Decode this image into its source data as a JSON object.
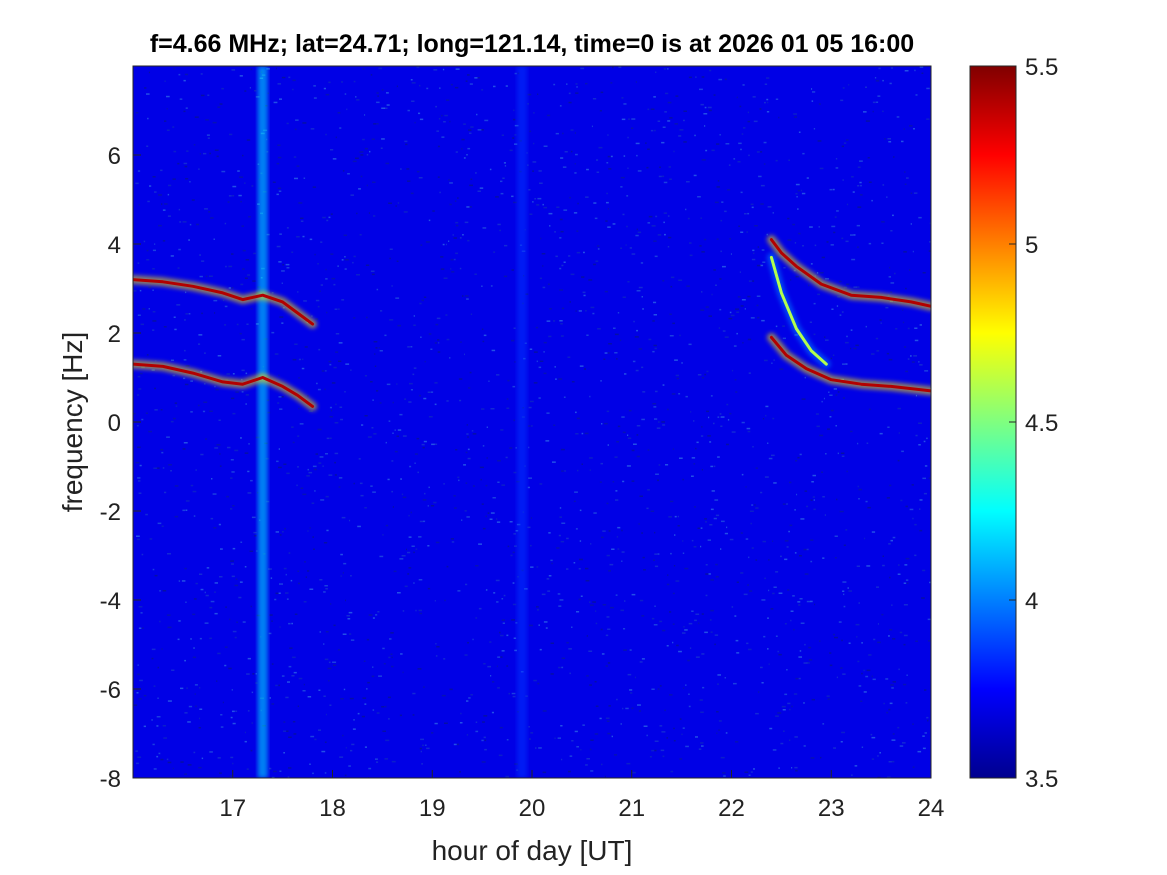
{
  "chart_data": {
    "type": "heatmap",
    "title": "f=4.66 MHz;  lat=24.71; long=121.14, time=0 is at 2026 01 05 16:00",
    "xlabel": "hour of day [UT]",
    "ylabel": "frequency [Hz]",
    "xlim": [
      16,
      24
    ],
    "ylim": [
      -8,
      8
    ],
    "x_ticks": [
      17,
      18,
      19,
      20,
      21,
      22,
      23,
      24
    ],
    "y_ticks": [
      -8,
      -6,
      -4,
      -2,
      0,
      2,
      4,
      6
    ],
    "colorbar": {
      "colormap": "jet",
      "clim": [
        3.5,
        5.5
      ],
      "ticks": [
        3.5,
        4,
        4.5,
        5,
        5.5
      ],
      "labels": [
        "3.5",
        "4",
        "4.5",
        "5",
        "5.5"
      ]
    },
    "background_level": 3.7,
    "features": [
      {
        "kind": "vertical-band",
        "x": 17.3,
        "level": 4.2
      },
      {
        "kind": "vertical-band",
        "x": 19.9,
        "level": 3.85
      },
      {
        "kind": "trace",
        "level": 5.4,
        "points": [
          [
            16.0,
            3.2
          ],
          [
            16.3,
            3.15
          ],
          [
            16.6,
            3.05
          ],
          [
            16.9,
            2.9
          ],
          [
            17.1,
            2.75
          ],
          [
            17.3,
            2.85
          ],
          [
            17.5,
            2.7
          ],
          [
            17.65,
            2.45
          ],
          [
            17.8,
            2.2
          ]
        ]
      },
      {
        "kind": "trace",
        "level": 5.4,
        "points": [
          [
            16.0,
            1.3
          ],
          [
            16.3,
            1.25
          ],
          [
            16.6,
            1.1
          ],
          [
            16.9,
            0.9
          ],
          [
            17.1,
            0.85
          ],
          [
            17.3,
            1.0
          ],
          [
            17.5,
            0.8
          ],
          [
            17.65,
            0.6
          ],
          [
            17.8,
            0.35
          ]
        ]
      },
      {
        "kind": "trace",
        "level": 5.4,
        "points": [
          [
            22.4,
            4.1
          ],
          [
            22.5,
            3.8
          ],
          [
            22.65,
            3.5
          ],
          [
            22.9,
            3.1
          ],
          [
            23.2,
            2.85
          ],
          [
            23.5,
            2.8
          ],
          [
            23.8,
            2.7
          ],
          [
            24.0,
            2.6
          ]
        ]
      },
      {
        "kind": "trace",
        "level": 5.4,
        "points": [
          [
            22.4,
            1.9
          ],
          [
            22.55,
            1.5
          ],
          [
            22.75,
            1.2
          ],
          [
            23.0,
            0.95
          ],
          [
            23.3,
            0.85
          ],
          [
            23.6,
            0.8
          ],
          [
            24.0,
            0.7
          ]
        ]
      },
      {
        "kind": "trace",
        "level": 4.6,
        "points": [
          [
            22.4,
            3.7
          ],
          [
            22.5,
            2.9
          ],
          [
            22.65,
            2.1
          ],
          [
            22.8,
            1.6
          ],
          [
            22.95,
            1.3
          ]
        ]
      }
    ]
  }
}
